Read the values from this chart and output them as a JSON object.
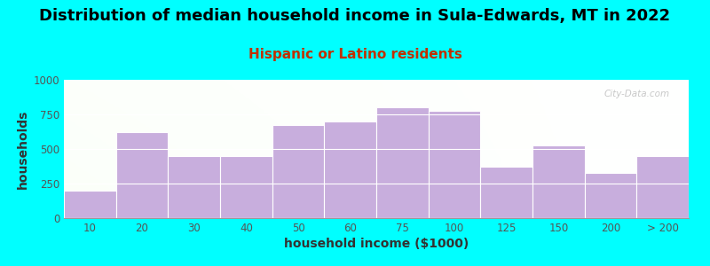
{
  "title": "Distribution of median household income in Sula-Edwards, MT in 2022",
  "subtitle": "Hispanic or Latino residents",
  "xlabel": "household income ($1000)",
  "ylabel": "households",
  "background_color": "#00FFFF",
  "bar_color": "#C8AEDD",
  "bar_edge_color": "#ffffff",
  "categories": [
    "10",
    "20",
    "30",
    "40",
    "50",
    "60",
    "75",
    "100",
    "125",
    "150",
    "200",
    "> 200"
  ],
  "values": [
    200,
    625,
    450,
    450,
    670,
    700,
    800,
    775,
    375,
    525,
    325,
    450
  ],
  "ylim": [
    0,
    1000
  ],
  "yticks": [
    0,
    250,
    500,
    750,
    1000
  ],
  "title_fontsize": 13,
  "subtitle_fontsize": 11,
  "subtitle_color": "#C03000",
  "axis_label_fontsize": 10,
  "tick_fontsize": 8.5,
  "title_color": "#000000",
  "watermark": "City-Data.com",
  "grid_color": "#ffffff",
  "plot_bg_left_color": "#d8f0c8",
  "plot_bg_right_color": "#f8f8f8"
}
